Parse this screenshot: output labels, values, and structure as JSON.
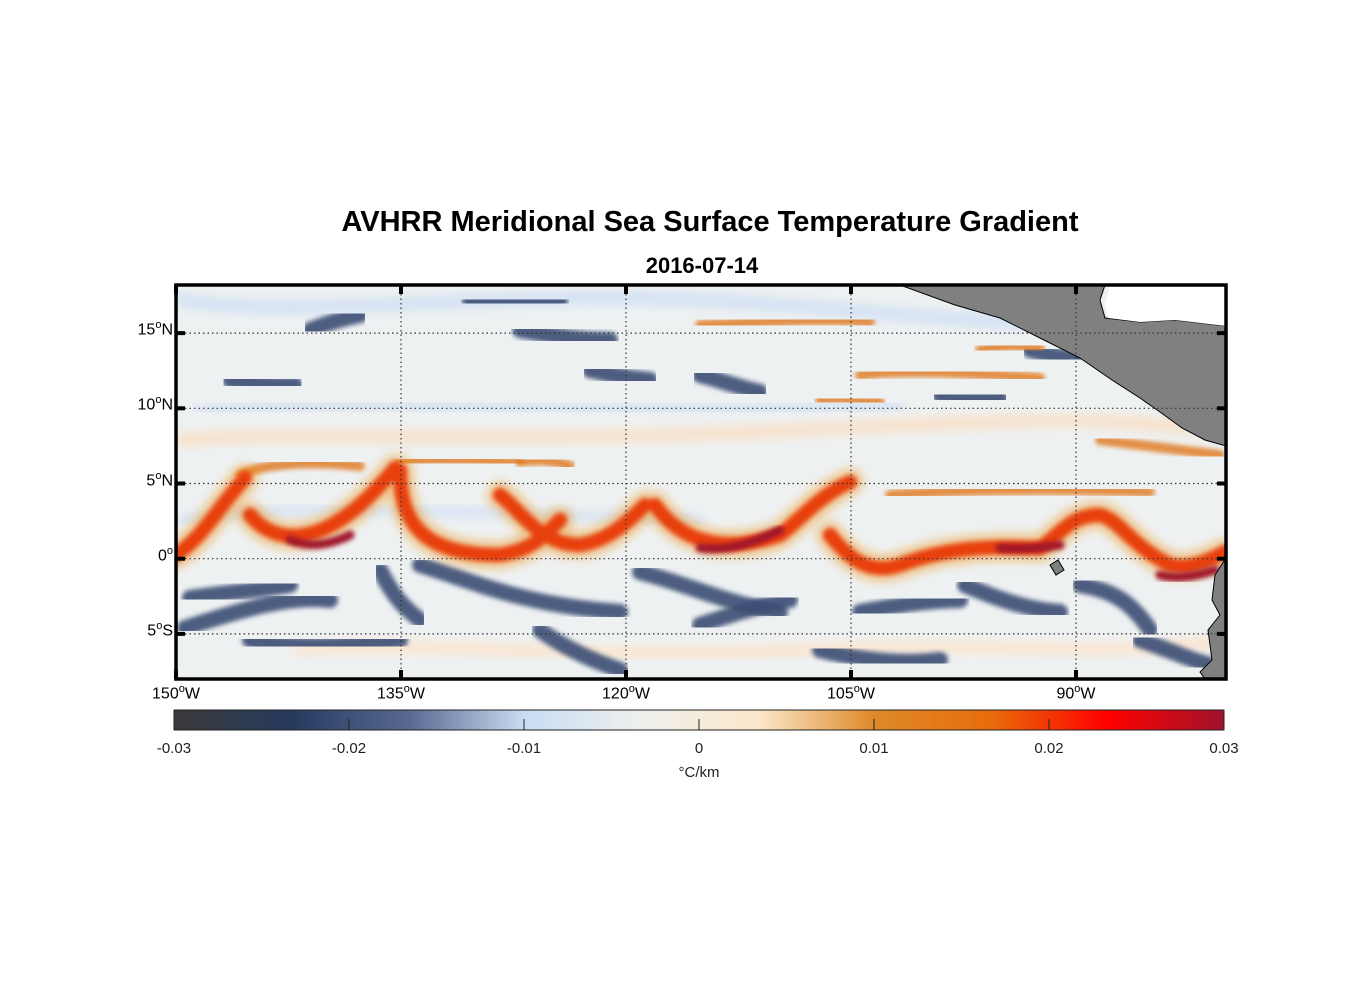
{
  "chart_data": {
    "type": "heatmap",
    "title": "AVHRR Meridional Sea Surface Temperature Gradient",
    "subtitle": "2016-07-14",
    "x_ticks": [
      {
        "value": -150,
        "label": "150",
        "suffix": "W"
      },
      {
        "value": -135,
        "label": "135",
        "suffix": "W"
      },
      {
        "value": -120,
        "label": "120",
        "suffix": "W"
      },
      {
        "value": -105,
        "label": "105",
        "suffix": "W"
      },
      {
        "value": -90,
        "label": "90",
        "suffix": "W"
      }
    ],
    "y_ticks": [
      {
        "value": 15,
        "label": "15",
        "suffix": "N"
      },
      {
        "value": 10,
        "label": "10",
        "suffix": "N"
      },
      {
        "value": 5,
        "label": "5",
        "suffix": "N"
      },
      {
        "value": 0,
        "label": "0",
        "suffix": ""
      },
      {
        "value": -5,
        "label": "5",
        "suffix": "S"
      }
    ],
    "xlim": [
      -150,
      -80
    ],
    "ylim": [
      -8,
      18.2
    ],
    "grid": true,
    "colorbar": {
      "range": [
        -0.03,
        0.03
      ],
      "ticks": [
        {
          "value": -0.03,
          "label": "-0.03"
        },
        {
          "value": -0.02,
          "label": "-0.02"
        },
        {
          "value": -0.01,
          "label": "-0.01"
        },
        {
          "value": 0,
          "label": "0"
        },
        {
          "value": 0.01,
          "label": "0.01"
        },
        {
          "value": 0.02,
          "label": "0.02"
        },
        {
          "value": 0.03,
          "label": "0.03"
        }
      ],
      "unit_label": "°C/km",
      "colors": [
        "#3a3a3a",
        "#263a5e",
        "#56688f",
        "#c8dcf2",
        "#eef0ee",
        "#fbe8cc",
        "#de8a2a",
        "#e86c0a",
        "#ff0000",
        "#a0132c"
      ]
    },
    "land_color": "#808080",
    "ocean_background": "#eef1f2",
    "positive_feature_color": "#e8400a",
    "negative_feature_color": "#3a4d74"
  }
}
